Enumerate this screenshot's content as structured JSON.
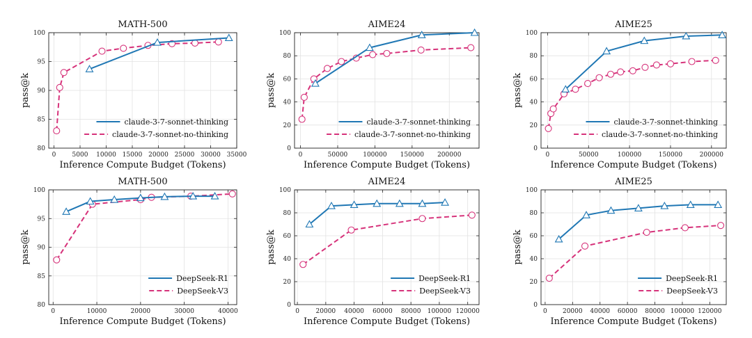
{
  "colors": {
    "series_solid": "#1f77b4",
    "series_dashed": "#d6327a",
    "grid": "#e2e2e2"
  },
  "chart_data": [
    {
      "type": "line",
      "title": "MATH-500",
      "xlabel": "Inference Compute Budget (Tokens)",
      "ylabel": "pass@k",
      "xlim": [
        -1000,
        35000
      ],
      "ylim": [
        80,
        100
      ],
      "xticks": [
        0,
        5000,
        10000,
        15000,
        20000,
        25000,
        30000,
        35000
      ],
      "xtick_labels": [
        "0",
        "5000",
        "10000",
        "15000",
        "20000",
        "25000",
        "30000",
        "35000"
      ],
      "yticks": [
        80,
        85,
        90,
        95,
        100
      ],
      "ytick_labels": [
        "80",
        "85",
        "90",
        "95",
        "100"
      ],
      "grid": true,
      "legend": "lower-right",
      "series": [
        {
          "name": "claude-3-7-sonnet-thinking",
          "style": "solid",
          "marker": "triangle",
          "x": [
            6800,
            19800,
            33500
          ],
          "y": [
            93.7,
            98.3,
            99.1
          ]
        },
        {
          "name": "claude-3-7-sonnet-no-thinking",
          "style": "dashed",
          "marker": "circle",
          "x": [
            500,
            1100,
            1900,
            9200,
            13300,
            18000,
            22600,
            27000,
            31500
          ],
          "y": [
            83.0,
            90.5,
            93.1,
            96.8,
            97.3,
            97.8,
            98.1,
            98.2,
            98.4
          ]
        }
      ]
    },
    {
      "type": "line",
      "title": "AIME24",
      "xlabel": "Inference Compute Budget (Tokens)",
      "ylabel": "pass@k",
      "xlim": [
        -8000,
        240000
      ],
      "ylim": [
        0,
        100
      ],
      "xticks": [
        0,
        50000,
        100000,
        150000,
        200000
      ],
      "xtick_labels": [
        "0",
        "50000",
        "100000",
        "150000",
        "200000"
      ],
      "yticks": [
        0,
        20,
        40,
        60,
        80,
        100
      ],
      "ytick_labels": [
        "0",
        "20",
        "40",
        "60",
        "80",
        "100"
      ],
      "grid": true,
      "legend": "lower-right",
      "series": [
        {
          "name": "claude-3-7-sonnet-thinking",
          "style": "solid",
          "marker": "triangle",
          "x": [
            20000,
            93000,
            163000,
            234000
          ],
          "y": [
            56,
            87,
            98,
            100
          ]
        },
        {
          "name": "claude-3-7-sonnet-no-thinking",
          "style": "dashed",
          "marker": "circle",
          "x": [
            2000,
            5000,
            18000,
            36000,
            55000,
            75000,
            97000,
            116000,
            162000,
            229000
          ],
          "y": [
            25,
            44,
            60,
            69,
            75,
            78,
            81,
            82,
            85,
            87
          ]
        }
      ]
    },
    {
      "type": "line",
      "title": "AIME25",
      "xlabel": "Inference Compute Budget (Tokens)",
      "ylabel": "pass@k",
      "xlim": [
        -8000,
        218000
      ],
      "ylim": [
        0,
        100
      ],
      "xticks": [
        0,
        50000,
        100000,
        150000,
        200000
      ],
      "xtick_labels": [
        "0",
        "50000",
        "100000",
        "150000",
        "200000"
      ],
      "yticks": [
        0,
        20,
        40,
        60,
        80,
        100
      ],
      "ytick_labels": [
        "0",
        "20",
        "40",
        "60",
        "80",
        "100"
      ],
      "grid": true,
      "legend": "lower-right",
      "series": [
        {
          "name": "claude-3-7-sonnet-thinking",
          "style": "solid",
          "marker": "triangle",
          "x": [
            22000,
            72000,
            118000,
            169000,
            213000
          ],
          "y": [
            51,
            84,
            93,
            97,
            98
          ]
        },
        {
          "name": "claude-3-7-sonnet-no-thinking",
          "style": "dashed",
          "marker": "circle",
          "x": [
            1000,
            4000,
            7000,
            20000,
            34000,
            49000,
            63000,
            77000,
            89000,
            104000,
            119000,
            133000,
            150000,
            176000,
            205000
          ],
          "y": [
            17,
            30,
            34,
            47,
            51,
            56,
            61,
            64,
            66,
            67,
            70,
            72,
            73,
            75,
            76
          ]
        }
      ]
    },
    {
      "type": "line",
      "title": "MATH-500",
      "xlabel": "Inference Compute Budget (Tokens)",
      "ylabel": "pass@k",
      "xlim": [
        -1000,
        42000
      ],
      "ylim": [
        80,
        100
      ],
      "xticks": [
        0,
        10000,
        20000,
        30000,
        40000
      ],
      "xtick_labels": [
        "0",
        "10000",
        "20000",
        "30000",
        "40000"
      ],
      "yticks": [
        80,
        85,
        90,
        95,
        100
      ],
      "ytick_labels": [
        "80",
        "85",
        "90",
        "95",
        "100"
      ],
      "grid": true,
      "legend": "lower-right",
      "series": [
        {
          "name": "DeepSeek-R1",
          "style": "solid",
          "marker": "triangle",
          "x": [
            3000,
            8500,
            14000,
            20000,
            25500,
            32000,
            37000
          ],
          "y": [
            96.2,
            98.0,
            98.3,
            98.6,
            98.8,
            98.9,
            98.9
          ]
        },
        {
          "name": "DeepSeek-V3",
          "style": "dashed",
          "marker": "circle",
          "x": [
            800,
            9000,
            20000,
            22500,
            31500,
            41000
          ],
          "y": [
            87.8,
            97.5,
            98.3,
            98.7,
            98.9,
            99.3
          ]
        }
      ]
    },
    {
      "type": "line",
      "title": "AIME24",
      "xlabel": "Inference Compute Budget (Tokens)",
      "ylabel": "pass@k",
      "xlim": [
        -2000,
        128000
      ],
      "ylim": [
        0,
        100
      ],
      "xticks": [
        0,
        20000,
        40000,
        60000,
        80000,
        100000,
        120000
      ],
      "xtick_labels": [
        "0",
        "20000",
        "40000",
        "60000",
        "80000",
        "100000",
        "120000"
      ],
      "yticks": [
        0,
        20,
        40,
        60,
        80,
        100
      ],
      "ytick_labels": [
        "0",
        "20",
        "40",
        "60",
        "80",
        "100"
      ],
      "grid": true,
      "legend": "lower-right",
      "series": [
        {
          "name": "DeepSeek-R1",
          "style": "solid",
          "marker": "triangle",
          "x": [
            8500,
            24000,
            40000,
            56000,
            72000,
            88000,
            104000
          ],
          "y": [
            70,
            86,
            87,
            88,
            88,
            88,
            89
          ]
        },
        {
          "name": "DeepSeek-V3",
          "style": "dashed",
          "marker": "circle",
          "x": [
            4000,
            38000,
            88000,
            123000
          ],
          "y": [
            35,
            65,
            75,
            78
          ]
        }
      ]
    },
    {
      "type": "line",
      "title": "AIME25",
      "xlabel": "Inference Compute Budget (Tokens)",
      "ylabel": "pass@k",
      "xlim": [
        -3000,
        132000
      ],
      "ylim": [
        0,
        100
      ],
      "xticks": [
        0,
        20000,
        40000,
        60000,
        80000,
        100000,
        120000
      ],
      "xtick_labels": [
        "0",
        "20000",
        "40000",
        "60000",
        "80000",
        "100000",
        "120000"
      ],
      "yticks": [
        0,
        20,
        40,
        60,
        80,
        100
      ],
      "ytick_labels": [
        "0",
        "20",
        "40",
        "60",
        "80",
        "100"
      ],
      "grid": true,
      "legend": "lower-right",
      "series": [
        {
          "name": "DeepSeek-R1",
          "style": "solid",
          "marker": "triangle",
          "x": [
            10000,
            30000,
            48000,
            68000,
            87000,
            106000,
            126000
          ],
          "y": [
            57,
            78,
            82,
            84,
            86,
            87,
            87
          ]
        },
        {
          "name": "DeepSeek-V3",
          "style": "dashed",
          "marker": "circle",
          "x": [
            3000,
            29000,
            74000,
            102000,
            128000
          ],
          "y": [
            23,
            51,
            63,
            67,
            69
          ]
        }
      ]
    }
  ]
}
